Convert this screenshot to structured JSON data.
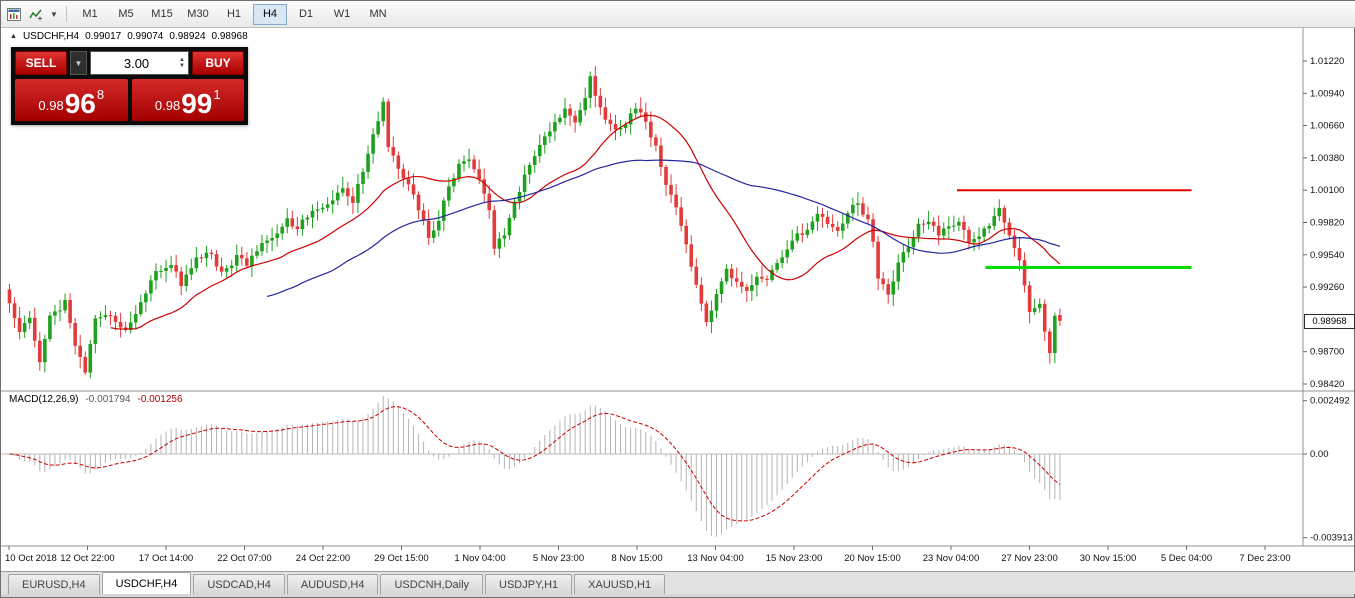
{
  "toolbar": {
    "icons": [
      "chart-window-icon",
      "indicators-icon",
      "dropdown-arrow-icon"
    ],
    "timeframes": [
      "M1",
      "M5",
      "M15",
      "M30",
      "H1",
      "H4",
      "D1",
      "W1",
      "MN"
    ],
    "active_timeframe": "H4"
  },
  "icons": {
    "dropdown_glyph": "▼",
    "up_glyph": "▲",
    "down_glyph": "▼",
    "collapse_glyph": "▲"
  },
  "chart": {
    "header": {
      "symbol": "USDCHF,H4",
      "open": "0.99017",
      "high": "0.99074",
      "low": "0.98924",
      "close": "0.98968"
    },
    "current_price": "0.98968",
    "price_axis_labels": [
      "1.01220",
      "1.00940",
      "1.00660",
      "1.00380",
      "1.00100",
      "0.99820",
      "0.99540",
      "0.99260",
      "0.98700",
      "0.98420"
    ],
    "time_axis_labels": [
      "10 Oct 2018",
      "12 Oct 22:00",
      "17 Oct 14:00",
      "22 Oct 07:00",
      "24 Oct 22:00",
      "29 Oct 15:00",
      "1 Nov 04:00",
      "5 Nov 23:00",
      "8 Nov 15:00",
      "13 Nov 04:00",
      "15 Nov 23:00",
      "20 Nov 15:00",
      "23 Nov 04:00",
      "27 Nov 23:00",
      "30 Nov 15:00",
      "5 Dec 04:00",
      "7 Dec 23:00"
    ],
    "colors": {
      "bull": "#1fa11f",
      "bear": "#e23b3b",
      "ma_fast": "#cc0000",
      "ma_slow": "#26269e",
      "hline_red": "#e00000",
      "hline_green": "#00dd00",
      "macd_hist": "#b4b4b4",
      "macd_signal": "#cc0000"
    }
  },
  "trade_panel": {
    "sell_label": "SELL",
    "buy_label": "BUY",
    "volume": "3.00",
    "sell_price_prefix": "0.98",
    "sell_price_big": "96",
    "sell_price_sup": "8",
    "buy_price_prefix": "0.98",
    "buy_price_big": "99",
    "buy_price_sup": "1"
  },
  "macd_panel": {
    "label": "MACD(12,26,9)",
    "value_main": "-0.001794",
    "value_signal": "-0.001256",
    "axis_labels": [
      "0.002492",
      "0.00",
      "-0.003913"
    ]
  },
  "tabs": {
    "items": [
      {
        "label": "EURUSD,H4",
        "active": false
      },
      {
        "label": "USDCHF,H4",
        "active": true
      },
      {
        "label": "USDCAD,H4",
        "active": false
      },
      {
        "label": "AUDUSD,H4",
        "active": false
      },
      {
        "label": "USDCNH,Daily",
        "active": false
      },
      {
        "label": "USDJPY,H1",
        "active": false
      },
      {
        "label": "XAUUSD,H1",
        "active": false
      }
    ]
  },
  "chart_data": {
    "type": "candlestick",
    "symbol": "USDCHF",
    "timeframe": "H4",
    "y_range": [
      0.9842,
      1.0122
    ],
    "grid_step": 0.0028,
    "bars_total": 209,
    "ohlc_current": {
      "open": 0.99017,
      "high": 0.99074,
      "low": 0.98924,
      "close": 0.98968
    },
    "close_path": [
      [
        0,
        0.9912
      ],
      [
        2,
        0.9885
      ],
      [
        4,
        0.9902
      ],
      [
        6,
        0.986
      ],
      [
        8,
        0.9898
      ],
      [
        11,
        0.9913
      ],
      [
        13,
        0.9878
      ],
      [
        15,
        0.985
      ],
      [
        17,
        0.9896
      ],
      [
        20,
        0.9901
      ],
      [
        23,
        0.9887
      ],
      [
        26,
        0.9916
      ],
      [
        29,
        0.9938
      ],
      [
        32,
        0.9945
      ],
      [
        34,
        0.9928
      ],
      [
        37,
        0.9952
      ],
      [
        40,
        0.9958
      ],
      [
        42,
        0.994
      ],
      [
        45,
        0.9953
      ],
      [
        47,
        0.9947
      ],
      [
        50,
        0.9962
      ],
      [
        53,
        0.997
      ],
      [
        55,
        0.999
      ],
      [
        57,
        0.9978
      ],
      [
        60,
        0.9995
      ],
      [
        63,
        1.0003
      ],
      [
        66,
        1.0008
      ],
      [
        68,
        0.9998
      ],
      [
        70,
        1.0028
      ],
      [
        73,
        1.0072
      ],
      [
        74,
        1.0088
      ],
      [
        75,
        1.005
      ],
      [
        77,
        1.0028
      ],
      [
        79,
        1.0012
      ],
      [
        81,
        0.9992
      ],
      [
        83,
        0.9968
      ],
      [
        85,
        0.9985
      ],
      [
        87,
        1.0012
      ],
      [
        89,
        1.0032
      ],
      [
        91,
        1.0038
      ],
      [
        93,
        1.0024
      ],
      [
        95,
        0.9992
      ],
      [
        96,
        0.996
      ],
      [
        98,
        0.9972
      ],
      [
        100,
        1.0002
      ],
      [
        102,
        1.0022
      ],
      [
        104,
        1.0038
      ],
      [
        106,
        1.0052
      ],
      [
        108,
        1.0068
      ],
      [
        110,
        1.0082
      ],
      [
        112,
        1.0065
      ],
      [
        114,
        1.0092
      ],
      [
        115,
        1.0108
      ],
      [
        116,
        1.009
      ],
      [
        118,
        1.0072
      ],
      [
        120,
        1.0058
      ],
      [
        122,
        1.0068
      ],
      [
        124,
        1.0082
      ],
      [
        126,
        1.0072
      ],
      [
        128,
        1.0048
      ],
      [
        130,
        1.0018
      ],
      [
        132,
        0.9998
      ],
      [
        134,
        0.9968
      ],
      [
        136,
        0.9928
      ],
      [
        138,
        0.99
      ],
      [
        140,
        0.9922
      ],
      [
        142,
        0.994
      ],
      [
        144,
        0.9932
      ],
      [
        146,
        0.9925
      ],
      [
        148,
        0.9938
      ],
      [
        150,
        0.9932
      ],
      [
        152,
        0.9945
      ],
      [
        154,
        0.9958
      ],
      [
        156,
        0.997
      ],
      [
        158,
        0.9976
      ],
      [
        160,
        0.9985
      ],
      [
        162,
        0.9978
      ],
      [
        164,
        0.9972
      ],
      [
        166,
        0.9992
      ],
      [
        168,
        0.9998
      ],
      [
        170,
        0.9985
      ],
      [
        171,
        0.9965
      ],
      [
        172,
        0.993
      ],
      [
        174,
        0.9918
      ],
      [
        176,
        0.9945
      ],
      [
        178,
        0.9962
      ],
      [
        180,
        0.9978
      ],
      [
        182,
        0.9986
      ],
      [
        184,
        0.9972
      ],
      [
        186,
        0.998
      ],
      [
        188,
        0.9984
      ],
      [
        190,
        0.9962
      ],
      [
        192,
        0.997
      ],
      [
        194,
        0.9978
      ],
      [
        196,
        0.9996
      ],
      [
        198,
        0.9976
      ],
      [
        200,
        0.9948
      ],
      [
        202,
        0.9902
      ],
      [
        204,
        0.9915
      ],
      [
        205,
        0.9888
      ],
      [
        206,
        0.9872
      ],
      [
        207,
        0.9901
      ],
      [
        208,
        0.98968
      ]
    ],
    "overlays": [
      {
        "type": "hline",
        "price": 1.001,
        "color": "#e00000",
        "x0_frac": 0.733,
        "x1_frac": 0.914,
        "width": 2
      },
      {
        "type": "hline",
        "price": 0.9943,
        "color": "#00dd00",
        "x0_frac": 0.755,
        "x1_frac": 0.914,
        "width": 3
      }
    ],
    "indicators": {
      "ma_fast_period": 21,
      "ma_slow_period": 52,
      "macd": {
        "fast": 12,
        "slow": 26,
        "signal": 9,
        "axis_max": 0.002492,
        "axis_min": -0.003913,
        "current_main": -0.001794,
        "current_signal": -0.001256
      }
    }
  }
}
